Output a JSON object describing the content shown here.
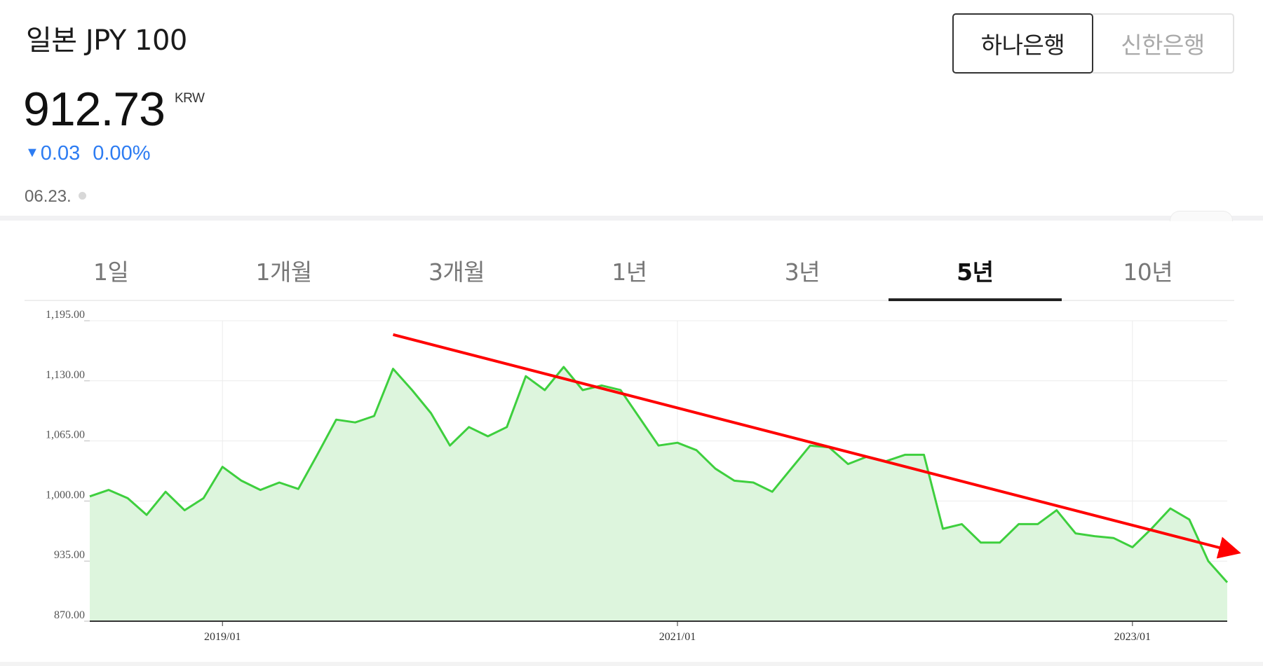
{
  "header": {
    "title": "일본 JPY 100",
    "price": "912.73",
    "currency": "KRW",
    "change_arrow": "▼",
    "change_value": "0.03",
    "change_percent": "0.00%",
    "date": "06.23."
  },
  "colors": {
    "change": "#2d7cf2",
    "line": "#3ecf3e",
    "area": "#ddf5dd",
    "trend_arrow": "#ff0000"
  },
  "bank_tabs": [
    {
      "label": "하나은행",
      "active": true
    },
    {
      "label": "신한은행",
      "active": false
    }
  ],
  "period_tabs": [
    {
      "label": "1일",
      "active": false
    },
    {
      "label": "1개월",
      "active": false
    },
    {
      "label": "3개월",
      "active": false
    },
    {
      "label": "1년",
      "active": false
    },
    {
      "label": "3년",
      "active": false
    },
    {
      "label": "5년",
      "active": true
    },
    {
      "label": "10년",
      "active": false
    }
  ],
  "chart_data": {
    "type": "area",
    "title": "",
    "xlabel": "",
    "ylabel": "",
    "ylim": [
      870,
      1195
    ],
    "y_ticks": [
      1195,
      1130,
      1065,
      1000,
      935,
      870
    ],
    "y_tick_labels": [
      "1,195.00",
      "1,130.00",
      "1,065.00",
      "1,000.00",
      "935.00",
      "870.00"
    ],
    "x_range": [
      "2018-06",
      "2023-06"
    ],
    "x_ticks": [
      {
        "label": "2019/01",
        "date": "2019-01"
      },
      {
        "label": "2021/01",
        "date": "2021-01"
      },
      {
        "label": "2023/01",
        "date": "2023-01"
      }
    ],
    "grid": true,
    "legend": "none",
    "series": [
      {
        "values": [
          {
            "x": "2018-06",
            "y": 1005
          },
          {
            "x": "2018-07",
            "y": 1012
          },
          {
            "x": "2018-08",
            "y": 1003
          },
          {
            "x": "2018-09",
            "y": 985
          },
          {
            "x": "2018-10",
            "y": 1010
          },
          {
            "x": "2018-11",
            "y": 990
          },
          {
            "x": "2018-12",
            "y": 1003
          },
          {
            "x": "2019-01",
            "y": 1037
          },
          {
            "x": "2019-02",
            "y": 1022
          },
          {
            "x": "2019-03",
            "y": 1012
          },
          {
            "x": "2019-04",
            "y": 1020
          },
          {
            "x": "2019-05",
            "y": 1013
          },
          {
            "x": "2019-06",
            "y": 1050
          },
          {
            "x": "2019-07",
            "y": 1088
          },
          {
            "x": "2019-08",
            "y": 1085
          },
          {
            "x": "2019-09",
            "y": 1092
          },
          {
            "x": "2019-10",
            "y": 1143
          },
          {
            "x": "2019-11",
            "y": 1120
          },
          {
            "x": "2019-12",
            "y": 1095
          },
          {
            "x": "2020-01",
            "y": 1060
          },
          {
            "x": "2020-02",
            "y": 1080
          },
          {
            "x": "2020-03",
            "y": 1070
          },
          {
            "x": "2020-04",
            "y": 1080
          },
          {
            "x": "2020-05",
            "y": 1135
          },
          {
            "x": "2020-06",
            "y": 1120
          },
          {
            "x": "2020-07",
            "y": 1145
          },
          {
            "x": "2020-08",
            "y": 1120
          },
          {
            "x": "2020-09",
            "y": 1125
          },
          {
            "x": "2020-10",
            "y": 1120
          },
          {
            "x": "2020-11",
            "y": 1090
          },
          {
            "x": "2020-12",
            "y": 1060
          },
          {
            "x": "2021-01",
            "y": 1063
          },
          {
            "x": "2021-02",
            "y": 1055
          },
          {
            "x": "2021-03",
            "y": 1035
          },
          {
            "x": "2021-04",
            "y": 1022
          },
          {
            "x": "2021-05",
            "y": 1020
          },
          {
            "x": "2021-06",
            "y": 1010
          },
          {
            "x": "2021-07",
            "y": 1035
          },
          {
            "x": "2021-08",
            "y": 1060
          },
          {
            "x": "2021-09",
            "y": 1058
          },
          {
            "x": "2021-10",
            "y": 1040
          },
          {
            "x": "2021-11",
            "y": 1048
          },
          {
            "x": "2021-12",
            "y": 1043
          },
          {
            "x": "2022-01",
            "y": 1050
          },
          {
            "x": "2022-02",
            "y": 1050
          },
          {
            "x": "2022-03",
            "y": 970
          },
          {
            "x": "2022-04",
            "y": 975
          },
          {
            "x": "2022-05",
            "y": 955
          },
          {
            "x": "2022-06",
            "y": 955
          },
          {
            "x": "2022-07",
            "y": 975
          },
          {
            "x": "2022-08",
            "y": 975
          },
          {
            "x": "2022-09",
            "y": 990
          },
          {
            "x": "2022-10",
            "y": 965
          },
          {
            "x": "2022-11",
            "y": 962
          },
          {
            "x": "2022-12",
            "y": 960
          },
          {
            "x": "2023-01",
            "y": 950
          },
          {
            "x": "2023-02",
            "y": 970
          },
          {
            "x": "2023-03",
            "y": 992
          },
          {
            "x": "2023-04",
            "y": 980
          },
          {
            "x": "2023-05",
            "y": 935
          },
          {
            "x": "2023-06",
            "y": 912
          }
        ]
      }
    ],
    "annotations": [
      {
        "type": "arrow",
        "color": "#ff0000",
        "from": {
          "x": "2019-10",
          "y": 1180
        },
        "to": {
          "x": "2023-06",
          "y": 945
        }
      }
    ]
  }
}
